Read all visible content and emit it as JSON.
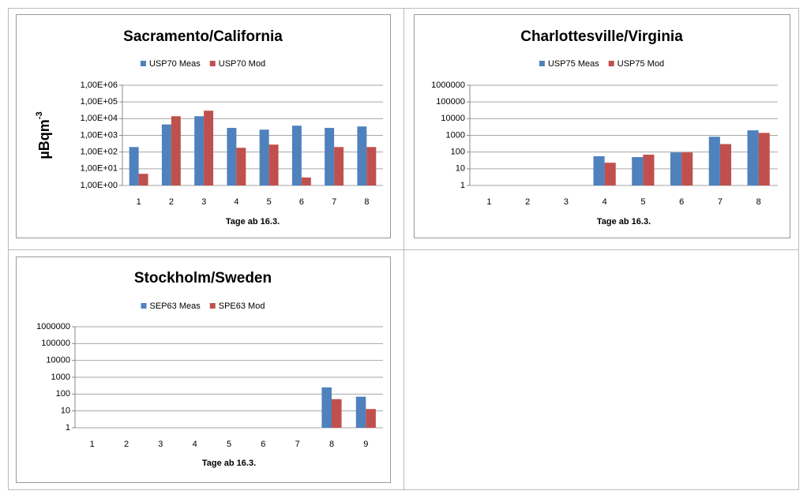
{
  "chart_data": [
    {
      "type": "bar",
      "title": "Sacramento/California",
      "y_label": {
        "base": "µBqm",
        "superscript": "-3"
      },
      "x_label": "Tage ab 16.3.",
      "categories": [
        "1",
        "2",
        "3",
        "4",
        "5",
        "6",
        "7",
        "8"
      ],
      "series": [
        {
          "name": "USP70 Meas",
          "color": "#4f81bd",
          "values": [
            200,
            4500,
            14000,
            2800,
            2200,
            3800,
            2800,
            3400
          ]
        },
        {
          "name": "USP70 Mod",
          "color": "#c0504d",
          "values": [
            5,
            14000,
            30000,
            180,
            280,
            3,
            200,
            200
          ]
        }
      ],
      "log_scale": true,
      "grid": true,
      "ylim": [
        1,
        1000000
      ],
      "yticks": [
        {
          "value": 1,
          "label": "1,00E+00"
        },
        {
          "value": 10,
          "label": "1,00E+01"
        },
        {
          "value": 100,
          "label": "1,00E+02"
        },
        {
          "value": 1000,
          "label": "1,00E+03"
        },
        {
          "value": 10000,
          "label": "1,00E+04"
        },
        {
          "value": 100000,
          "label": "1,00E+05"
        },
        {
          "value": 1000000,
          "label": "1,00E+06"
        }
      ]
    },
    {
      "type": "bar",
      "title": "Charlottesville/Virginia",
      "x_label": "Tage ab 16.3.",
      "categories": [
        "1",
        "2",
        "3",
        "4",
        "5",
        "6",
        "7",
        "8"
      ],
      "series": [
        {
          "name": "USP75 Meas",
          "color": "#4f81bd",
          "values": [
            null,
            null,
            null,
            56,
            50,
            95,
            830,
            2000
          ]
        },
        {
          "name": "USP75 Mod",
          "color": "#c0504d",
          "values": [
            null,
            null,
            null,
            23,
            70,
            95,
            300,
            1400
          ]
        }
      ],
      "log_scale": true,
      "grid": true,
      "ylim": [
        1,
        1000000
      ],
      "yticks": [
        1,
        10,
        100,
        1000,
        10000,
        100000,
        1000000
      ]
    },
    {
      "type": "bar",
      "title": "Stockholm/Sweden",
      "x_label": "Tage ab 16.3.",
      "categories": [
        "1",
        "2",
        "3",
        "4",
        "5",
        "6",
        "7",
        "8",
        "9"
      ],
      "series": [
        {
          "name": "SEP63 Meas",
          "color": "#4f81bd",
          "values": [
            null,
            null,
            null,
            null,
            null,
            null,
            null,
            250,
            70
          ]
        },
        {
          "name": "SPE63 Mod",
          "color": "#c0504d",
          "values": [
            null,
            null,
            null,
            null,
            null,
            null,
            null,
            50,
            13
          ]
        }
      ],
      "log_scale": true,
      "grid": true,
      "ylim": [
        1,
        1000000
      ],
      "yticks": [
        1,
        10,
        100,
        1000,
        10000,
        100000,
        1000000
      ]
    }
  ]
}
